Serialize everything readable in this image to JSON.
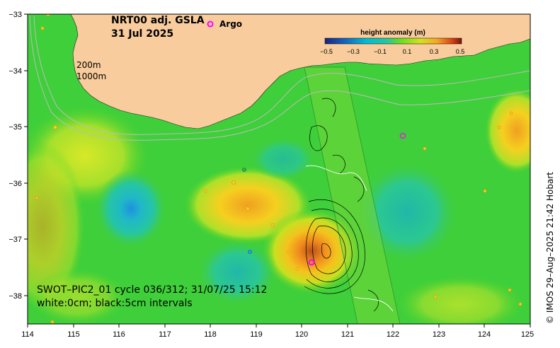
{
  "header": {
    "title_line1": "NRT00 adj. GSLA",
    "title_line2": "31 Jul 2025",
    "argo_label": "Argo"
  },
  "isobaths": {
    "shallow": "200m",
    "deep": "1000m"
  },
  "colorbar": {
    "title": "height anomaly (m)",
    "ticks": [
      "−0.5",
      "−0.3",
      "−0.1",
      "0.1",
      "0.3",
      "0.5"
    ],
    "range": [
      -0.5,
      0.5
    ]
  },
  "caption": {
    "line1": "SWOT–PIC2_01 cycle 036/312; 31/07/25 15:12",
    "line2": "white:0cm; black:5cm intervals"
  },
  "credit": "© IMOS 29–Aug–2025 21:42 Hobart",
  "axes": {
    "x_ticks": [
      "114",
      "115",
      "116",
      "117",
      "118",
      "119",
      "120",
      "121",
      "122",
      "123",
      "124",
      "125"
    ],
    "y_ticks": [
      "−33",
      "−34",
      "−35",
      "−36",
      "−37",
      "−38"
    ],
    "lon_range": [
      114,
      125
    ],
    "lat_range": [
      -38.5,
      -33
    ]
  },
  "colors": {
    "land": "#f8cc9c",
    "background": "#33cc33",
    "argo_marker": "#ff00ff",
    "isobath": "#bbbbbb"
  }
}
